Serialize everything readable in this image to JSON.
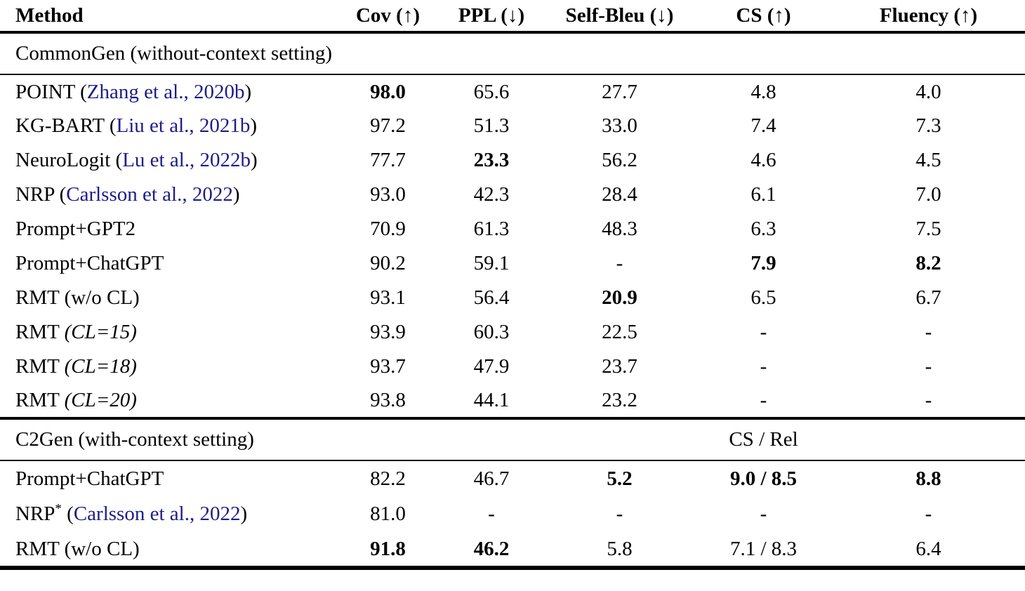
{
  "colors": {
    "citation": "#1c1c8a",
    "text": "#000000",
    "rule": "#000000"
  },
  "table": {
    "columns": [
      "Method",
      "Cov (↑)",
      "PPL (↓)",
      "Self-Bleu (↓)",
      "CS (↑)",
      "Fluency (↑)"
    ],
    "sections": [
      {
        "title": "CommonGen (without-context setting)",
        "cs_subheader": "",
        "rows": [
          {
            "method": [
              {
                "t": "POINT (",
                "s": "plain"
              },
              {
                "t": "Zhang et al., 2020b",
                "s": "cite"
              },
              {
                "t": ")",
                "s": "plain"
              }
            ],
            "values": [
              {
                "t": "98.0",
                "b": true
              },
              {
                "t": "65.6"
              },
              {
                "t": "27.7"
              },
              {
                "t": "4.8"
              },
              {
                "t": "4.0"
              }
            ]
          },
          {
            "method": [
              {
                "t": "KG-BART (",
                "s": "plain"
              },
              {
                "t": "Liu et al., 2021b",
                "s": "cite"
              },
              {
                "t": ")",
                "s": "plain"
              }
            ],
            "values": [
              {
                "t": "97.2"
              },
              {
                "t": "51.3"
              },
              {
                "t": "33.0"
              },
              {
                "t": "7.4"
              },
              {
                "t": "7.3"
              }
            ]
          },
          {
            "method": [
              {
                "t": "NeuroLogit (",
                "s": "plain"
              },
              {
                "t": "Lu et al., 2022b",
                "s": "cite"
              },
              {
                "t": ")",
                "s": "plain"
              }
            ],
            "values": [
              {
                "t": "77.7"
              },
              {
                "t": "23.3",
                "b": true
              },
              {
                "t": "56.2"
              },
              {
                "t": "4.6"
              },
              {
                "t": "4.5"
              }
            ]
          },
          {
            "method": [
              {
                "t": "NRP (",
                "s": "plain"
              },
              {
                "t": "Carlsson et al., 2022",
                "s": "cite"
              },
              {
                "t": ")",
                "s": "plain"
              }
            ],
            "values": [
              {
                "t": "93.0"
              },
              {
                "t": "42.3"
              },
              {
                "t": "28.4"
              },
              {
                "t": "6.1"
              },
              {
                "t": "7.0"
              }
            ]
          },
          {
            "method": [
              {
                "t": "Prompt+GPT2",
                "s": "plain"
              }
            ],
            "values": [
              {
                "t": "70.9"
              },
              {
                "t": "61.3"
              },
              {
                "t": "48.3"
              },
              {
                "t": "6.3"
              },
              {
                "t": "7.5"
              }
            ]
          },
          {
            "method": [
              {
                "t": "Prompt+ChatGPT",
                "s": "plain"
              }
            ],
            "values": [
              {
                "t": "90.2"
              },
              {
                "t": "59.1"
              },
              {
                "t": "-"
              },
              {
                "t": "7.9",
                "b": true
              },
              {
                "t": "8.2",
                "b": true
              }
            ]
          },
          {
            "method": [
              {
                "t": "RMT (w/o CL)",
                "s": "plain"
              }
            ],
            "values": [
              {
                "t": "93.1"
              },
              {
                "t": "56.4"
              },
              {
                "t": "20.9",
                "b": true
              },
              {
                "t": "6.5"
              },
              {
                "t": "6.7"
              }
            ]
          },
          {
            "method": [
              {
                "t": "RMT ",
                "s": "plain"
              },
              {
                "t": "(CL=15)",
                "s": "it"
              }
            ],
            "values": [
              {
                "t": "93.9"
              },
              {
                "t": "60.3"
              },
              {
                "t": "22.5"
              },
              {
                "t": "-"
              },
              {
                "t": "-"
              }
            ]
          },
          {
            "method": [
              {
                "t": "RMT ",
                "s": "plain"
              },
              {
                "t": "(CL=18)",
                "s": "it"
              }
            ],
            "values": [
              {
                "t": "93.7"
              },
              {
                "t": "47.9"
              },
              {
                "t": "23.7"
              },
              {
                "t": "-"
              },
              {
                "t": "-"
              }
            ]
          },
          {
            "method": [
              {
                "t": "RMT ",
                "s": "plain"
              },
              {
                "t": "(CL=20)",
                "s": "it"
              }
            ],
            "values": [
              {
                "t": "93.8"
              },
              {
                "t": "44.1"
              },
              {
                "t": "23.2"
              },
              {
                "t": "-"
              },
              {
                "t": "-"
              }
            ]
          }
        ]
      },
      {
        "title": "C2Gen (with-context setting)",
        "cs_subheader": "CS / Rel",
        "rows": [
          {
            "method": [
              {
                "t": "Prompt+ChatGPT",
                "s": "plain"
              }
            ],
            "values": [
              {
                "t": "82.2"
              },
              {
                "t": "46.7"
              },
              {
                "t": "5.2",
                "b": true
              },
              {
                "t": "9.0 / 8.5",
                "b": true
              },
              {
                "t": "8.8",
                "b": true
              }
            ]
          },
          {
            "method": [
              {
                "t": "NRP",
                "s": "plain"
              },
              {
                "t": "*",
                "s": "sup"
              },
              {
                "t": " (",
                "s": "plain"
              },
              {
                "t": "Carlsson et al., 2022",
                "s": "cite"
              },
              {
                "t": ")",
                "s": "plain"
              }
            ],
            "values": [
              {
                "t": "81.0"
              },
              {
                "t": "-"
              },
              {
                "t": "-"
              },
              {
                "t": "-"
              },
              {
                "t": "-"
              }
            ]
          },
          {
            "method": [
              {
                "t": "RMT (w/o CL)",
                "s": "plain"
              }
            ],
            "values": [
              {
                "t": "91.8",
                "b": true
              },
              {
                "t": "46.2",
                "b": true
              },
              {
                "t": "5.8"
              },
              {
                "t": "7.1 / 8.3"
              },
              {
                "t": "6.4"
              }
            ]
          }
        ]
      }
    ]
  }
}
